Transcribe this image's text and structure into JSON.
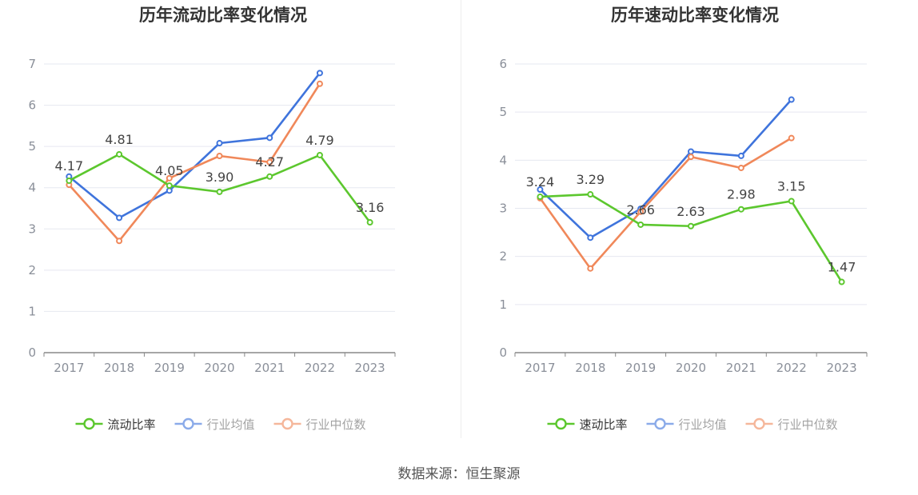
{
  "source": "数据来源：恒生聚源",
  "colors": {
    "company": "#5cc72e",
    "industry_avg": "#3f74dc",
    "industry_median": "#f0885a",
    "grid": "#e6e8f0",
    "axis": "#888888",
    "tick_label": "#8a8f99",
    "title": "#333333"
  },
  "chart_data": [
    {
      "type": "line",
      "title": "历年流动比率变化情况",
      "xlabel": "",
      "ylabel": "",
      "categories": [
        "2017",
        "2018",
        "2019",
        "2020",
        "2021",
        "2022",
        "2023"
      ],
      "ylim": [
        0,
        7
      ],
      "yticks": [
        0,
        1,
        2,
        3,
        4,
        5,
        6,
        7
      ],
      "grid": true,
      "legend_position": "bottom",
      "series": [
        {
          "name": "流动比率",
          "color_key": "company",
          "values": [
            4.17,
            4.81,
            4.05,
            3.9,
            4.27,
            4.79,
            3.16
          ],
          "labels": [
            "4.17",
            "4.81",
            "4.05",
            "3.90",
            "4.27",
            "4.79",
            "3.16"
          ]
        },
        {
          "name": "行业均值",
          "color_key": "industry_avg",
          "values": [
            4.27,
            3.27,
            3.93,
            5.08,
            5.21,
            6.78,
            null
          ]
        },
        {
          "name": "行业中位数",
          "color_key": "industry_median",
          "values": [
            4.07,
            2.71,
            4.23,
            4.77,
            4.62,
            6.52,
            null
          ]
        }
      ]
    },
    {
      "type": "line",
      "title": "历年速动比率变化情况",
      "xlabel": "",
      "ylabel": "",
      "categories": [
        "2017",
        "2018",
        "2019",
        "2020",
        "2021",
        "2022",
        "2023"
      ],
      "ylim": [
        0,
        6
      ],
      "yticks": [
        0,
        1,
        2,
        3,
        4,
        5,
        6
      ],
      "grid": true,
      "legend_position": "bottom",
      "series": [
        {
          "name": "速动比率",
          "color_key": "company",
          "values": [
            3.24,
            3.29,
            2.66,
            2.63,
            2.98,
            3.15,
            1.47
          ],
          "labels": [
            "3.24",
            "3.29",
            "2.66",
            "2.63",
            "2.98",
            "3.15",
            "1.47"
          ]
        },
        {
          "name": "行业均值",
          "color_key": "industry_avg",
          "values": [
            3.39,
            2.39,
            2.99,
            4.18,
            4.09,
            5.26,
            null
          ]
        },
        {
          "name": "行业中位数",
          "color_key": "industry_median",
          "values": [
            3.21,
            1.75,
            2.93,
            4.07,
            3.84,
            4.46,
            null
          ]
        }
      ]
    }
  ]
}
